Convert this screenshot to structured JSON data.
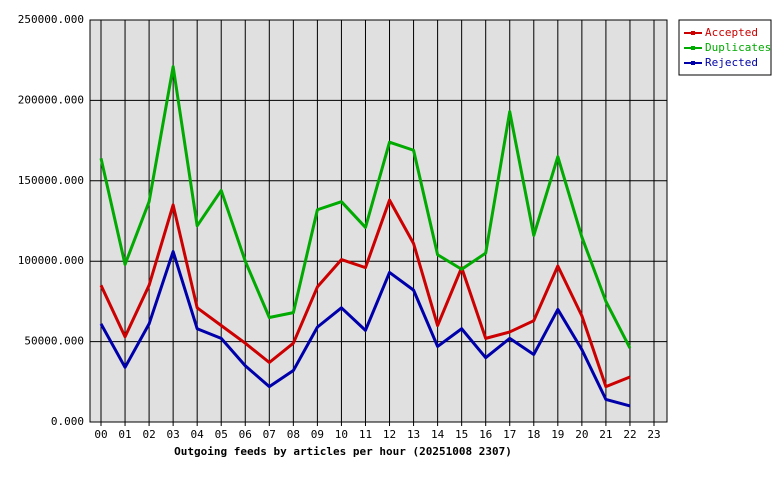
{
  "chart_data": {
    "type": "line",
    "title": "Outgoing feeds by articles per hour (20251008 2307)",
    "categories": [
      "00",
      "01",
      "02",
      "03",
      "04",
      "05",
      "06",
      "07",
      "08",
      "09",
      "10",
      "11",
      "12",
      "13",
      "14",
      "15",
      "16",
      "17",
      "18",
      "19",
      "20",
      "21",
      "22",
      "23"
    ],
    "series": [
      {
        "name": "Accepted",
        "color": "#cc0000",
        "values": [
          85000,
          53000,
          85000,
          135000,
          71000,
          60000,
          49000,
          37000,
          49000,
          84000,
          101000,
          96000,
          138000,
          111000,
          60000,
          96000,
          52000,
          56000,
          63000,
          97000,
          66000,
          22000,
          28000,
          null
        ]
      },
      {
        "name": "Duplicates",
        "color": "#00aa00",
        "values": [
          164000,
          98000,
          137000,
          221000,
          122000,
          144000,
          100000,
          65000,
          68000,
          132000,
          137000,
          121000,
          174000,
          169000,
          104000,
          95000,
          105000,
          193000,
          116000,
          165000,
          115000,
          75000,
          46000,
          null
        ]
      },
      {
        "name": "Rejected",
        "color": "#0000aa",
        "values": [
          61000,
          34000,
          61000,
          106000,
          58000,
          52000,
          35000,
          22000,
          32000,
          59000,
          71000,
          57000,
          93000,
          82000,
          47000,
          58000,
          40000,
          52000,
          42000,
          70000,
          45000,
          14000,
          10000,
          null
        ]
      }
    ],
    "ylim": [
      0,
      250000
    ],
    "yticks": [
      {
        "value": 0,
        "label": "0.000"
      },
      {
        "value": 50000,
        "label": "50000.000"
      },
      {
        "value": 100000,
        "label": "100000.000"
      },
      {
        "value": 150000,
        "label": "150000.000"
      },
      {
        "value": 200000,
        "label": "200000.000"
      },
      {
        "value": 250000,
        "label": "250000.000"
      }
    ],
    "grid": true,
    "legend": "top-right"
  }
}
